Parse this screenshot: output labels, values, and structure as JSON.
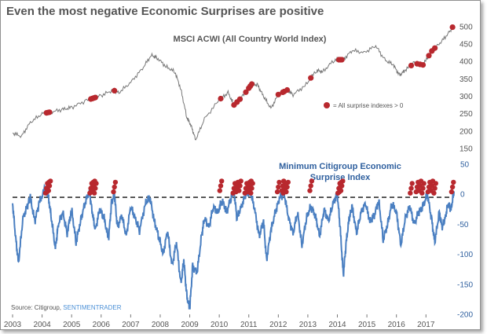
{
  "title": "Even the most negative Economic Surprises are positive",
  "source": {
    "prefix": "Source: Citigroup, ",
    "brand": "SENTIMENTRADER"
  },
  "colors": {
    "price_line": "#777777",
    "surprise_line": "#4a7fc1",
    "highlight": "#b8282e",
    "axis_blue": "#2e5f9e",
    "zero_line": "#333333"
  },
  "chart_data": [
    {
      "type": "line",
      "panel": "top",
      "title": "MSCI ACWI (All Country World Index)",
      "yticks": [
        150,
        200,
        250,
        300,
        350,
        400,
        450,
        500
      ],
      "ylim": [
        150,
        520
      ],
      "xlim": [
        2003.0,
        2017.95
      ],
      "legend": {
        "label": "= All surprise indexes > 0",
        "position": "right"
      },
      "x": [
        2003.0,
        2003.3,
        2003.6,
        2004.0,
        2004.3,
        2004.7,
        2005.0,
        2005.5,
        2006.0,
        2006.4,
        2006.6,
        2007.0,
        2007.4,
        2007.7,
        2007.9,
        2008.2,
        2008.5,
        2008.7,
        2008.9,
        2009.05,
        2009.2,
        2009.5,
        2010.0,
        2010.3,
        2010.5,
        2010.8,
        2011.1,
        2011.3,
        2011.5,
        2011.75,
        2012.0,
        2012.3,
        2012.5,
        2012.9,
        2013.3,
        2013.5,
        2013.9,
        2014.2,
        2014.5,
        2014.9,
        2015.3,
        2015.6,
        2015.9,
        2016.1,
        2016.3,
        2016.6,
        2016.9,
        2017.2,
        2017.5,
        2017.8,
        2017.95
      ],
      "y": [
        195,
        185,
        225,
        250,
        255,
        262,
        268,
        288,
        302,
        318,
        310,
        340,
        380,
        418,
        410,
        385,
        370,
        320,
        240,
        215,
        175,
        235,
        290,
        310,
        275,
        300,
        335,
        332,
        300,
        265,
        305,
        318,
        305,
        330,
        375,
        370,
        405,
        405,
        432,
        425,
        445,
        405,
        390,
        360,
        375,
        395,
        390,
        430,
        455,
        485,
        505
      ],
      "highlight_x": [
        2004.15,
        2004.2,
        2004.25,
        2005.65,
        2005.7,
        2005.75,
        2005.8,
        2006.45,
        2010.05,
        2010.5,
        2010.6,
        2010.7,
        2010.9,
        2011.0,
        2011.05,
        2011.1,
        2012.0,
        2012.15,
        2012.2,
        2012.3,
        2013.1,
        2014.05,
        2014.1,
        2014.15,
        2016.5,
        2016.7,
        2016.8,
        2016.9,
        2017.1,
        2017.2,
        2017.3,
        2017.9
      ]
    },
    {
      "type": "line",
      "panel": "bottom",
      "title": "Minimum Citigroup Economic Surprise Index",
      "yticks": [
        50,
        0,
        -50,
        -100,
        -150,
        -200
      ],
      "ylim": [
        -200,
        50
      ],
      "xlim": [
        2003.0,
        2017.95
      ],
      "xticks": [
        "2003",
        "2004",
        "2005",
        "2006",
        "2007",
        "2008",
        "2009",
        "2010",
        "2011",
        "2012",
        "2013",
        "2014",
        "2015",
        "2016",
        "2017"
      ],
      "reference_line": -5,
      "x": [
        2003.0,
        2003.1,
        2003.2,
        2003.35,
        2003.5,
        2003.6,
        2003.75,
        2003.9,
        2004.1,
        2004.2,
        2004.3,
        2004.45,
        2004.55,
        2004.7,
        2004.85,
        2005.0,
        2005.15,
        2005.3,
        2005.45,
        2005.6,
        2005.7,
        2005.8,
        2005.95,
        2006.1,
        2006.25,
        2006.35,
        2006.45,
        2006.55,
        2006.7,
        2006.85,
        2007.0,
        2007.15,
        2007.3,
        2007.5,
        2007.65,
        2007.8,
        2007.95,
        2008.1,
        2008.25,
        2008.4,
        2008.55,
        2008.7,
        2008.8,
        2008.9,
        2009.0,
        2009.1,
        2009.25,
        2009.4,
        2009.5,
        2009.65,
        2009.8,
        2009.95,
        2010.1,
        2010.25,
        2010.4,
        2010.5,
        2010.6,
        2010.75,
        2010.9,
        2011.05,
        2011.2,
        2011.35,
        2011.5,
        2011.6,
        2011.75,
        2011.9,
        2012.05,
        2012.2,
        2012.35,
        2012.5,
        2012.65,
        2012.8,
        2012.95,
        2013.1,
        2013.25,
        2013.4,
        2013.55,
        2013.7,
        2013.85,
        2014.0,
        2014.1,
        2014.2,
        2014.3,
        2014.4,
        2014.5,
        2014.65,
        2014.8,
        2014.95,
        2015.1,
        2015.25,
        2015.4,
        2015.55,
        2015.7,
        2015.85,
        2016.0,
        2016.15,
        2016.3,
        2016.45,
        2016.6,
        2016.75,
        2016.9,
        2017.05,
        2017.2,
        2017.3,
        2017.45,
        2017.55,
        2017.65,
        2017.75,
        2017.85,
        2017.95
      ],
      "y": [
        -15,
        -70,
        -115,
        -40,
        -20,
        -5,
        -45,
        -15,
        10,
        0,
        -35,
        -90,
        -50,
        -30,
        -65,
        -25,
        -80,
        -45,
        -15,
        5,
        -30,
        -60,
        -25,
        -40,
        -75,
        -15,
        0,
        -55,
        -35,
        -70,
        -20,
        -40,
        -60,
        -15,
        -5,
        -45,
        -70,
        -100,
        -60,
        -120,
        -80,
        -150,
        -110,
        -170,
        -190,
        -120,
        -130,
        -70,
        -40,
        -55,
        -20,
        -30,
        -10,
        -30,
        -5,
        5,
        -40,
        -20,
        0,
        5,
        -25,
        -70,
        -45,
        -110,
        -60,
        -30,
        -5,
        0,
        -40,
        -65,
        -30,
        -85,
        -40,
        -20,
        -35,
        -70,
        -25,
        -45,
        -15,
        0,
        -60,
        -135,
        -80,
        -40,
        -20,
        -65,
        -30,
        -15,
        -45,
        -35,
        -10,
        -75,
        -50,
        -15,
        -30,
        -85,
        -40,
        -20,
        -50,
        -30,
        -20,
        0,
        -45,
        -80,
        -30,
        -55,
        -40,
        -15,
        -25,
        5
      ]
    }
  ]
}
